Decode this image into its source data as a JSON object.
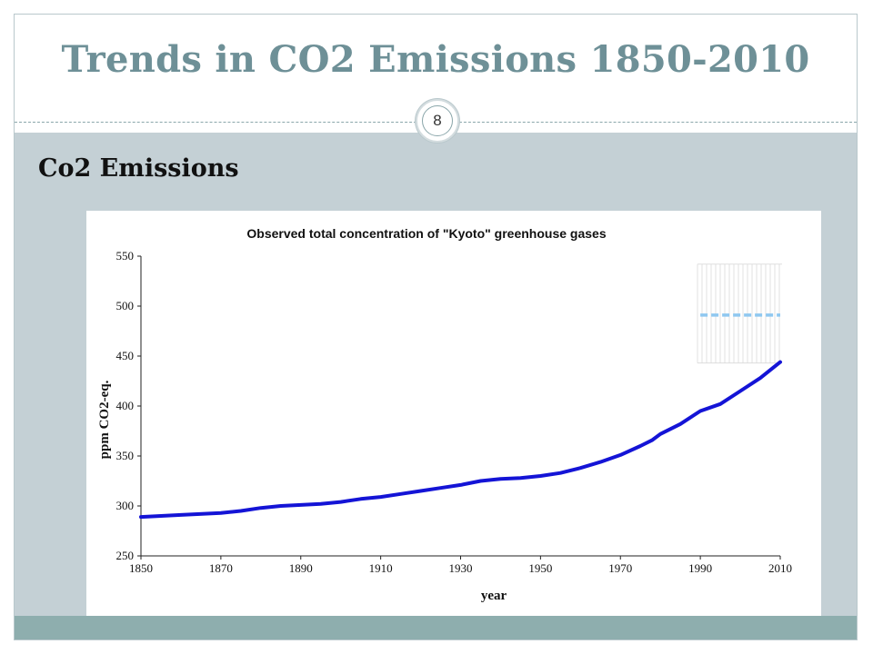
{
  "slide": {
    "title": "Trends in CO2 Emissions 1850-2010",
    "page_number": "8",
    "subheading": "Co2 Emissions"
  },
  "colors": {
    "title": "#6e9097",
    "content_band": "#c4d0d5",
    "footer_band": "#8eaeae",
    "series_line": "#1414d6",
    "reference_line": "#8fc8f0"
  },
  "chart_data": {
    "type": "line",
    "title": "Observed total concentration of \"Kyoto\" greenhouse gases",
    "xlabel": "year",
    "ylabel": "ppm CO2-eq.",
    "xlim": [
      1850,
      2010
    ],
    "ylim": [
      250,
      550
    ],
    "xticks": [
      1850,
      1870,
      1890,
      1910,
      1930,
      1950,
      1970,
      1990,
      2010
    ],
    "yticks": [
      250,
      300,
      350,
      400,
      450,
      500,
      550
    ],
    "grid": false,
    "series": [
      {
        "x": [
          1850,
          1860,
          1870,
          1875,
          1880,
          1885,
          1890,
          1895,
          1900,
          1905,
          1910,
          1915,
          1920,
          1925,
          1930,
          1935,
          1940,
          1945,
          1950,
          1955,
          1960,
          1965,
          1970,
          1975,
          1978,
          1980,
          1985,
          1990,
          1995,
          2000,
          2005,
          2010
        ],
        "y": [
          289,
          291,
          293,
          295,
          298,
          300,
          301,
          302,
          304,
          307,
          309,
          312,
          315,
          318,
          321,
          325,
          327,
          328,
          330,
          333,
          338,
          344,
          351,
          360,
          366,
          372,
          382,
          395,
          402,
          415,
          428,
          444
        ]
      }
    ],
    "reference_line": {
      "y": 491,
      "x_range": [
        1990,
        2010
      ],
      "style": "dashed"
    }
  }
}
